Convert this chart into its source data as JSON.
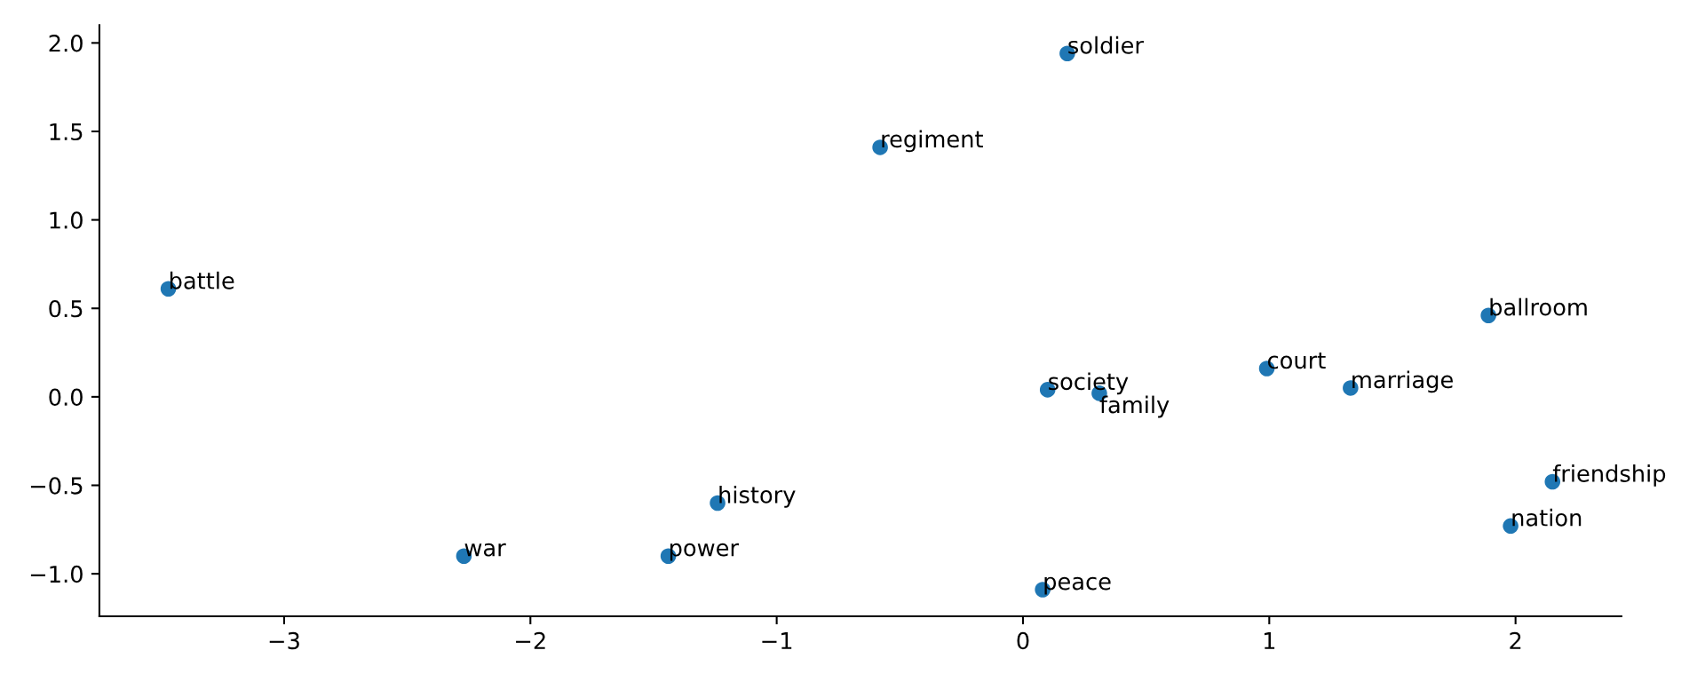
{
  "chart_data": {
    "type": "scatter",
    "x": [
      -3.47,
      -2.27,
      0.18,
      -0.58,
      0.1,
      0.31,
      -1.24,
      -1.44,
      0.08,
      0.99,
      1.33,
      1.89,
      2.15,
      1.98
    ],
    "values": [
      0.61,
      -0.9,
      1.94,
      1.41,
      0.04,
      0.02,
      -0.6,
      -0.9,
      -1.09,
      0.16,
      0.05,
      0.46,
      -0.48,
      -0.73
    ],
    "color": "#1f77b4",
    "marker": "circle",
    "grid": false,
    "annotations": [
      {
        "text": "battle",
        "x": -3.47,
        "y": 0.61
      },
      {
        "text": "war",
        "x": -2.27,
        "y": -0.9
      },
      {
        "text": "soldier",
        "x": 0.18,
        "y": 1.94
      },
      {
        "text": "regiment",
        "x": -0.58,
        "y": 1.41
      },
      {
        "text": "society",
        "x": 0.1,
        "y": 0.04
      },
      {
        "text": "family",
        "x": 0.31,
        "y": 0.02
      },
      {
        "text": "history",
        "x": -1.24,
        "y": -0.6
      },
      {
        "text": "power",
        "x": -1.44,
        "y": -0.9
      },
      {
        "text": "peace",
        "x": 0.08,
        "y": -1.09
      },
      {
        "text": "court",
        "x": 0.99,
        "y": 0.16
      },
      {
        "text": "marriage",
        "x": 1.33,
        "y": 0.05
      },
      {
        "text": "ballroom",
        "x": 1.89,
        "y": 0.46
      },
      {
        "text": "friendship",
        "x": 2.15,
        "y": -0.48
      },
      {
        "text": "nation",
        "x": 1.98,
        "y": -0.73
      }
    ],
    "xlim": [
      -3.75,
      2.43
    ],
    "ylim": [
      -1.24,
      2.1
    ],
    "xticks": [
      {
        "value": -3,
        "label": "−3"
      },
      {
        "value": -2,
        "label": "−2"
      },
      {
        "value": -1,
        "label": "−1"
      },
      0,
      1,
      2
    ],
    "yticks": [
      {
        "value": -1.0,
        "label": "−1.0"
      },
      {
        "value": -0.5,
        "label": "−0.5"
      },
      {
        "value": 0.0,
        "label": "0.0"
      },
      {
        "value": 0.5,
        "label": "0.5"
      },
      {
        "value": 1.0,
        "label": "1.0"
      },
      {
        "value": 1.5,
        "label": "1.5"
      },
      {
        "value": 2.0,
        "label": "2.0"
      }
    ]
  }
}
